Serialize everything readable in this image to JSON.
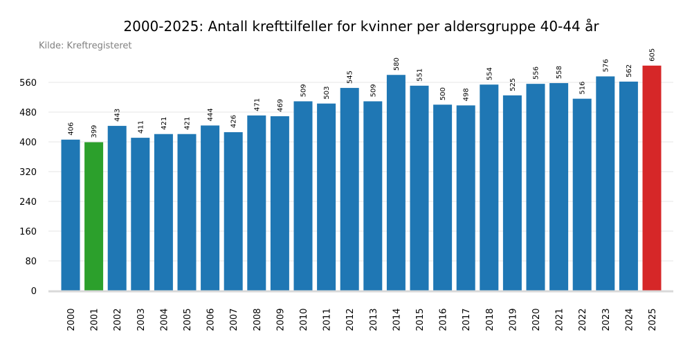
{
  "chart_data": {
    "type": "bar",
    "title": "2000-2025: Antall krefttilfeller for kvinner per aldersgruppe 40-44 år",
    "source": "Kilde: Kreftregisteret",
    "xlabel": "",
    "ylabel": "",
    "ylim": [
      0,
      610
    ],
    "yticks": [
      0,
      80,
      160,
      240,
      320,
      400,
      480,
      560
    ],
    "grid": "horizontal",
    "categories": [
      "2000",
      "2001",
      "2002",
      "2003",
      "2004",
      "2005",
      "2006",
      "2007",
      "2008",
      "2009",
      "2010",
      "2011",
      "2012",
      "2013",
      "2014",
      "2015",
      "2016",
      "2017",
      "2018",
      "2019",
      "2020",
      "2021",
      "2022",
      "2023",
      "2024",
      "2025"
    ],
    "values": [
      406,
      399,
      443,
      411,
      421,
      421,
      444,
      426,
      471,
      469,
      509,
      503,
      545,
      509,
      580,
      551,
      500,
      498,
      554,
      525,
      556,
      558,
      516,
      576,
      562,
      605
    ],
    "colors": {
      "default": "#1f77b4",
      "min": "#2ca02c",
      "max": "#d62728",
      "grid": "#e6e6e6",
      "axis": "#d9d9d9"
    },
    "highlight": {
      "2001": "min",
      "2025": "max"
    }
  }
}
